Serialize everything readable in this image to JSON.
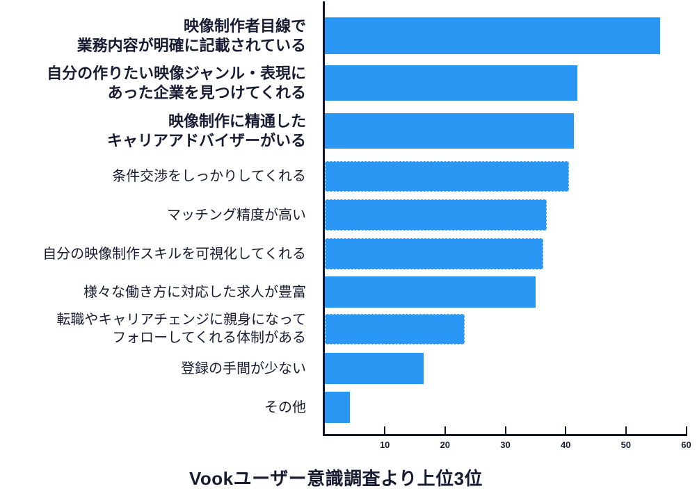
{
  "chart_data": {
    "type": "bar",
    "orientation": "horizontal",
    "caption": "Vookユーザー意識調査より上位3位",
    "categories": [
      "映像制作者目線で\n業務内容が明確に記載されている",
      "自分の作りたい映像ジャンル・表現に\nあった企業を見つけてくれる",
      "映像制作に精通した\nキャリアアドバイザーがいる",
      "条件交渉をしっかりしてくれる",
      "マッチング精度が高い",
      "自分の映像制作スキルを可視化してくれる",
      "様々な働き方に対応した求人が豊富",
      "転職やキャリアチェンジに親身になって\nフォローしてくれる体制がある",
      "登録の手間が少ない",
      "その他"
    ],
    "values": [
      55.6,
      41.9,
      41.3,
      40.5,
      36.8,
      36.2,
      34.9,
      23.2,
      16.4,
      4.2
    ],
    "bold_categories": [
      true,
      true,
      true,
      false,
      false,
      false,
      false,
      false,
      false,
      false
    ],
    "dashed_outline": [
      false,
      false,
      false,
      true,
      true,
      true,
      false,
      true,
      false,
      false
    ],
    "xlim": [
      0,
      60
    ],
    "x_ticks": [
      10,
      20,
      30,
      40,
      50,
      60
    ],
    "xlabel": "",
    "ylabel": "",
    "grid": false,
    "legend": false,
    "colors": {
      "bar": "#2A97F5",
      "text": "#171C33",
      "axis": "#10172B",
      "dashed_outline": "#C9E5FD",
      "background": "#FFFFFF"
    }
  }
}
